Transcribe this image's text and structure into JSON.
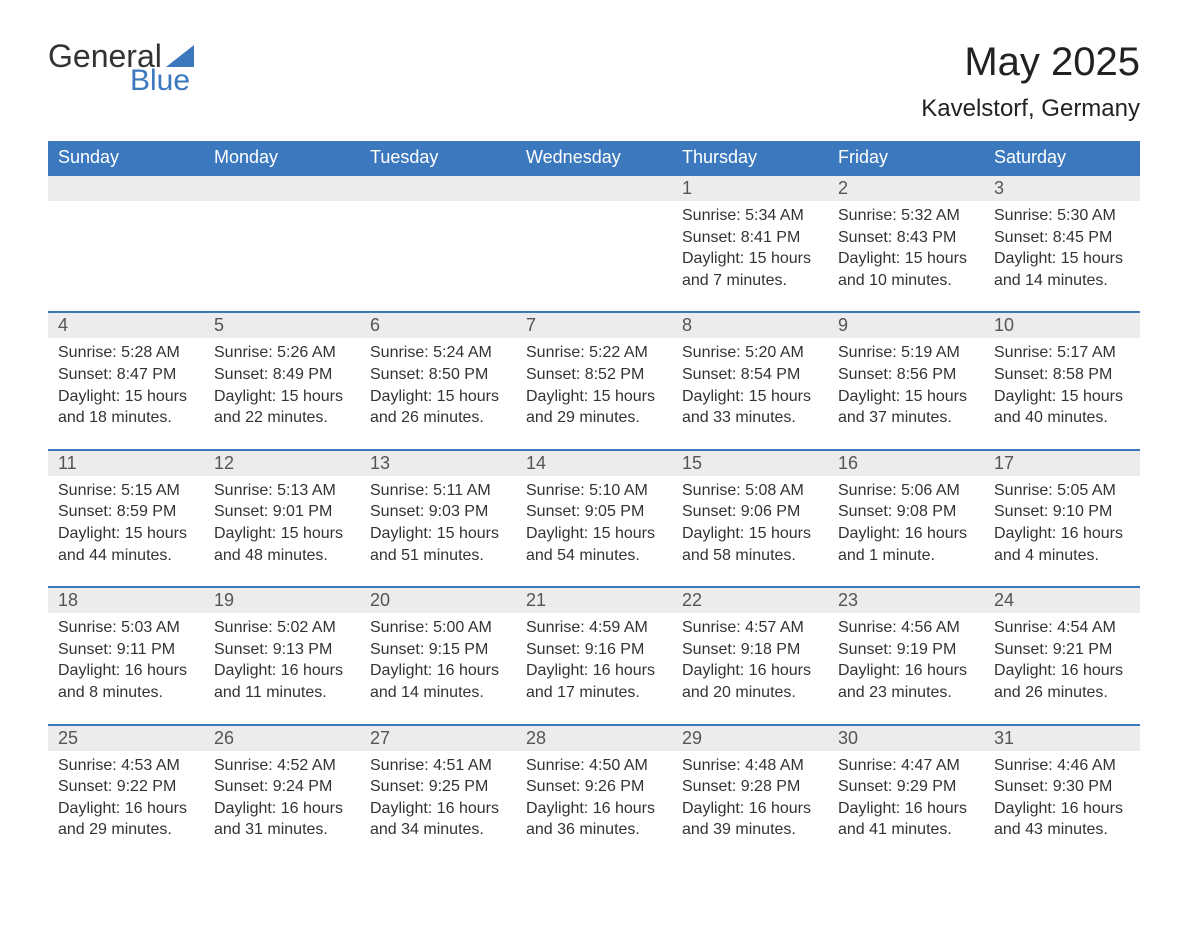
{
  "brand": {
    "word1": "General",
    "word2": "Blue",
    "word1_color": "#333333",
    "word2_color": "#3b78bd",
    "triangle_color": "#3b78bd"
  },
  "header": {
    "month_title": "May 2025",
    "location": "Kavelstorf, Germany"
  },
  "colors": {
    "header_bg": "#3b78bd",
    "header_text": "#ffffff",
    "daynum_bg": "#ececec",
    "daynum_text": "#555555",
    "body_text": "#333333",
    "week_divider": "#3b78bd",
    "page_bg": "#ffffff"
  },
  "fonts": {
    "month_title_size": 40,
    "location_size": 24,
    "weekday_size": 18,
    "daynum_size": 18,
    "body_size": 16
  },
  "weekdays": [
    "Sunday",
    "Monday",
    "Tuesday",
    "Wednesday",
    "Thursday",
    "Friday",
    "Saturday"
  ],
  "calendar": {
    "first_weekday_index": 4,
    "days": [
      {
        "n": 1,
        "sunrise": "5:34 AM",
        "sunset": "8:41 PM",
        "daylight": "15 hours and 7 minutes."
      },
      {
        "n": 2,
        "sunrise": "5:32 AM",
        "sunset": "8:43 PM",
        "daylight": "15 hours and 10 minutes."
      },
      {
        "n": 3,
        "sunrise": "5:30 AM",
        "sunset": "8:45 PM",
        "daylight": "15 hours and 14 minutes."
      },
      {
        "n": 4,
        "sunrise": "5:28 AM",
        "sunset": "8:47 PM",
        "daylight": "15 hours and 18 minutes."
      },
      {
        "n": 5,
        "sunrise": "5:26 AM",
        "sunset": "8:49 PM",
        "daylight": "15 hours and 22 minutes."
      },
      {
        "n": 6,
        "sunrise": "5:24 AM",
        "sunset": "8:50 PM",
        "daylight": "15 hours and 26 minutes."
      },
      {
        "n": 7,
        "sunrise": "5:22 AM",
        "sunset": "8:52 PM",
        "daylight": "15 hours and 29 minutes."
      },
      {
        "n": 8,
        "sunrise": "5:20 AM",
        "sunset": "8:54 PM",
        "daylight": "15 hours and 33 minutes."
      },
      {
        "n": 9,
        "sunrise": "5:19 AM",
        "sunset": "8:56 PM",
        "daylight": "15 hours and 37 minutes."
      },
      {
        "n": 10,
        "sunrise": "5:17 AM",
        "sunset": "8:58 PM",
        "daylight": "15 hours and 40 minutes."
      },
      {
        "n": 11,
        "sunrise": "5:15 AM",
        "sunset": "8:59 PM",
        "daylight": "15 hours and 44 minutes."
      },
      {
        "n": 12,
        "sunrise": "5:13 AM",
        "sunset": "9:01 PM",
        "daylight": "15 hours and 48 minutes."
      },
      {
        "n": 13,
        "sunrise": "5:11 AM",
        "sunset": "9:03 PM",
        "daylight": "15 hours and 51 minutes."
      },
      {
        "n": 14,
        "sunrise": "5:10 AM",
        "sunset": "9:05 PM",
        "daylight": "15 hours and 54 minutes."
      },
      {
        "n": 15,
        "sunrise": "5:08 AM",
        "sunset": "9:06 PM",
        "daylight": "15 hours and 58 minutes."
      },
      {
        "n": 16,
        "sunrise": "5:06 AM",
        "sunset": "9:08 PM",
        "daylight": "16 hours and 1 minute."
      },
      {
        "n": 17,
        "sunrise": "5:05 AM",
        "sunset": "9:10 PM",
        "daylight": "16 hours and 4 minutes."
      },
      {
        "n": 18,
        "sunrise": "5:03 AM",
        "sunset": "9:11 PM",
        "daylight": "16 hours and 8 minutes."
      },
      {
        "n": 19,
        "sunrise": "5:02 AM",
        "sunset": "9:13 PM",
        "daylight": "16 hours and 11 minutes."
      },
      {
        "n": 20,
        "sunrise": "5:00 AM",
        "sunset": "9:15 PM",
        "daylight": "16 hours and 14 minutes."
      },
      {
        "n": 21,
        "sunrise": "4:59 AM",
        "sunset": "9:16 PM",
        "daylight": "16 hours and 17 minutes."
      },
      {
        "n": 22,
        "sunrise": "4:57 AM",
        "sunset": "9:18 PM",
        "daylight": "16 hours and 20 minutes."
      },
      {
        "n": 23,
        "sunrise": "4:56 AM",
        "sunset": "9:19 PM",
        "daylight": "16 hours and 23 minutes."
      },
      {
        "n": 24,
        "sunrise": "4:54 AM",
        "sunset": "9:21 PM",
        "daylight": "16 hours and 26 minutes."
      },
      {
        "n": 25,
        "sunrise": "4:53 AM",
        "sunset": "9:22 PM",
        "daylight": "16 hours and 29 minutes."
      },
      {
        "n": 26,
        "sunrise": "4:52 AM",
        "sunset": "9:24 PM",
        "daylight": "16 hours and 31 minutes."
      },
      {
        "n": 27,
        "sunrise": "4:51 AM",
        "sunset": "9:25 PM",
        "daylight": "16 hours and 34 minutes."
      },
      {
        "n": 28,
        "sunrise": "4:50 AM",
        "sunset": "9:26 PM",
        "daylight": "16 hours and 36 minutes."
      },
      {
        "n": 29,
        "sunrise": "4:48 AM",
        "sunset": "9:28 PM",
        "daylight": "16 hours and 39 minutes."
      },
      {
        "n": 30,
        "sunrise": "4:47 AM",
        "sunset": "9:29 PM",
        "daylight": "16 hours and 41 minutes."
      },
      {
        "n": 31,
        "sunrise": "4:46 AM",
        "sunset": "9:30 PM",
        "daylight": "16 hours and 43 minutes."
      }
    ],
    "labels": {
      "sunrise_prefix": "Sunrise: ",
      "sunset_prefix": "Sunset: ",
      "daylight_prefix": "Daylight: "
    }
  }
}
